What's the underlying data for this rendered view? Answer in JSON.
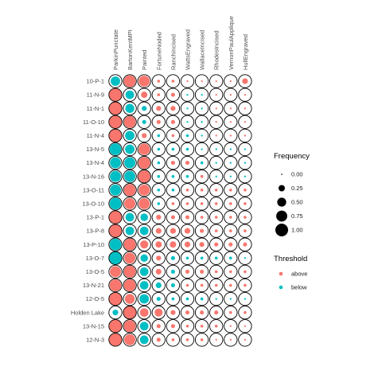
{
  "chart_data": {
    "type": "dot-matrix",
    "columns": [
      "ParkinPunctate",
      "BartonKentMPI",
      "Painted",
      "FortuneNoded",
      "Ranchincised",
      "WattsEngraved",
      "WallaceIncised",
      "RhodesIncised",
      "VernonPaulApplique",
      "HullEngraved"
    ],
    "rows": [
      "10-P-1",
      "11-N-9",
      "11-N-1",
      "11-O-10",
      "11-N-4",
      "13-N-5",
      "13-N-4",
      "13-N-16",
      "13-O-11",
      "13-O-10",
      "13-P-1",
      "13-P-8",
      "13-P-10",
      "13-O-7",
      "13-O-5",
      "13-N-21",
      "12-O-5",
      "Holden Lake",
      "13-N-15",
      "12-N-3"
    ],
    "frequency": [
      [
        0.55,
        0.85,
        0.75,
        0.05,
        0.05,
        0.02,
        0.02,
        0.02,
        0.02,
        0.2
      ],
      [
        1.0,
        0.45,
        0.25,
        0.05,
        0.1,
        0.02,
        0.02,
        0.02,
        0.02,
        0.02
      ],
      [
        1.0,
        0.5,
        0.15,
        0.15,
        0.15,
        0.02,
        0.02,
        0.02,
        0.02,
        0.02
      ],
      [
        1.0,
        0.85,
        0.1,
        0.1,
        0.1,
        0.02,
        0.02,
        0.02,
        0.02,
        0.02
      ],
      [
        1.0,
        0.55,
        0.15,
        0.05,
        0.05,
        0.05,
        0.02,
        0.02,
        0.02,
        0.02
      ],
      [
        0.85,
        0.55,
        0.8,
        0.05,
        0.05,
        0.05,
        0.02,
        0.02,
        0.02,
        0.02
      ],
      [
        0.75,
        0.75,
        0.85,
        0.05,
        0.1,
        0.1,
        0.05,
        0.02,
        0.02,
        0.02
      ],
      [
        0.75,
        0.75,
        0.9,
        0.05,
        0.05,
        0.05,
        0.05,
        0.02,
        0.02,
        0.02
      ],
      [
        0.75,
        0.85,
        0.75,
        0.05,
        0.05,
        0.05,
        0.05,
        0.05,
        0.05,
        0.05
      ],
      [
        0.85,
        0.75,
        0.75,
        0.05,
        0.05,
        0.05,
        0.05,
        0.05,
        0.05,
        0.05
      ],
      [
        1.0,
        0.45,
        0.35,
        0.15,
        0.1,
        0.1,
        0.05,
        0.05,
        0.05,
        0.05
      ],
      [
        1.0,
        0.45,
        0.45,
        0.2,
        0.2,
        0.2,
        0.1,
        0.05,
        0.05,
        0.05
      ],
      [
        0.85,
        0.85,
        0.4,
        0.25,
        0.25,
        0.2,
        0.15,
        0.1,
        0.1,
        0.1
      ],
      [
        1.0,
        0.75,
        0.35,
        0.15,
        0.1,
        0.05,
        0.05,
        0.05,
        0.05,
        0.02
      ],
      [
        0.75,
        0.85,
        0.45,
        0.2,
        0.1,
        0.1,
        0.1,
        0.05,
        0.05,
        0.05
      ],
      [
        0.85,
        0.85,
        0.45,
        0.2,
        0.1,
        0.05,
        0.05,
        0.05,
        0.05,
        0.05
      ],
      [
        1.0,
        0.6,
        0.55,
        0.1,
        0.05,
        0.05,
        0.05,
        0.02,
        0.02,
        0.02
      ],
      [
        0.2,
        1.0,
        0.45,
        0.4,
        0.15,
        0.1,
        0.1,
        0.1,
        0.05,
        0.05
      ],
      [
        1.0,
        0.85,
        0.45,
        0.1,
        0.1,
        0.05,
        0.05,
        0.05,
        0.02,
        0.02
      ],
      [
        1.0,
        0.75,
        0.45,
        0.1,
        0.05,
        0.05,
        0.05,
        0.02,
        0.02,
        0.02
      ]
    ],
    "threshold": [
      [
        "below",
        "above",
        "above",
        "above",
        "above",
        "above",
        "above",
        "above",
        "above",
        "above"
      ],
      [
        "above",
        "below",
        "above",
        "above",
        "above",
        "below",
        "below",
        "above",
        "above",
        "above"
      ],
      [
        "above",
        "below",
        "below",
        "above",
        "above",
        "below",
        "below",
        "above",
        "above",
        "above"
      ],
      [
        "above",
        "above",
        "below",
        "above",
        "above",
        "below",
        "below",
        "above",
        "above",
        "above"
      ],
      [
        "above",
        "below",
        "above",
        "below",
        "above",
        "below",
        "below",
        "above",
        "above",
        "above"
      ],
      [
        "below",
        "below",
        "above",
        "below",
        "below",
        "below",
        "below",
        "below",
        "below",
        "below"
      ],
      [
        "below",
        "below",
        "above",
        "below",
        "above",
        "above",
        "below",
        "below",
        "below",
        "below"
      ],
      [
        "below",
        "below",
        "above",
        "below",
        "below",
        "below",
        "above",
        "below",
        "below",
        "below"
      ],
      [
        "below",
        "above",
        "above",
        "below",
        "below",
        "above",
        "above",
        "above",
        "above",
        "above"
      ],
      [
        "below",
        "above",
        "above",
        "below",
        "above",
        "above",
        "above",
        "above",
        "above",
        "above"
      ],
      [
        "above",
        "below",
        "below",
        "above",
        "above",
        "above",
        "above",
        "above",
        "above",
        "above"
      ],
      [
        "above",
        "below",
        "below",
        "above",
        "above",
        "above",
        "above",
        "above",
        "above",
        "above"
      ],
      [
        "below",
        "above",
        "above",
        "above",
        "above",
        "above",
        "above",
        "above",
        "above",
        "above"
      ],
      [
        "below",
        "above",
        "below",
        "above",
        "below",
        "below",
        "below",
        "below",
        "below",
        "below"
      ],
      [
        "above",
        "above",
        "below",
        "above",
        "below",
        "above",
        "above",
        "above",
        "above",
        "above"
      ],
      [
        "above",
        "above",
        "below",
        "below",
        "below",
        "above",
        "above",
        "above",
        "above",
        "above"
      ],
      [
        "above",
        "above",
        "below",
        "below",
        "below",
        "below",
        "below",
        "below",
        "below",
        "below"
      ],
      [
        "below",
        "above",
        "above",
        "above",
        "above",
        "above",
        "above",
        "above",
        "above",
        "above"
      ],
      [
        "above",
        "above",
        "below",
        "above",
        "above",
        "above",
        "above",
        "above",
        "above",
        "above"
      ],
      [
        "above",
        "above",
        "below",
        "above",
        "above",
        "above",
        "above",
        "above",
        "above",
        "above"
      ]
    ],
    "legend": {
      "size_title": "Frequency",
      "size_labels": [
        "0.00",
        "0.25",
        "0.50",
        "0.75",
        "1.00"
      ],
      "size_values": [
        0.0,
        0.25,
        0.5,
        0.75,
        1.0
      ],
      "color_title": "Threshold",
      "color_labels": [
        "above",
        "below"
      ]
    },
    "colors": {
      "above": "#F8766D",
      "below": "#00BFC4",
      "ring": "#000000"
    }
  }
}
